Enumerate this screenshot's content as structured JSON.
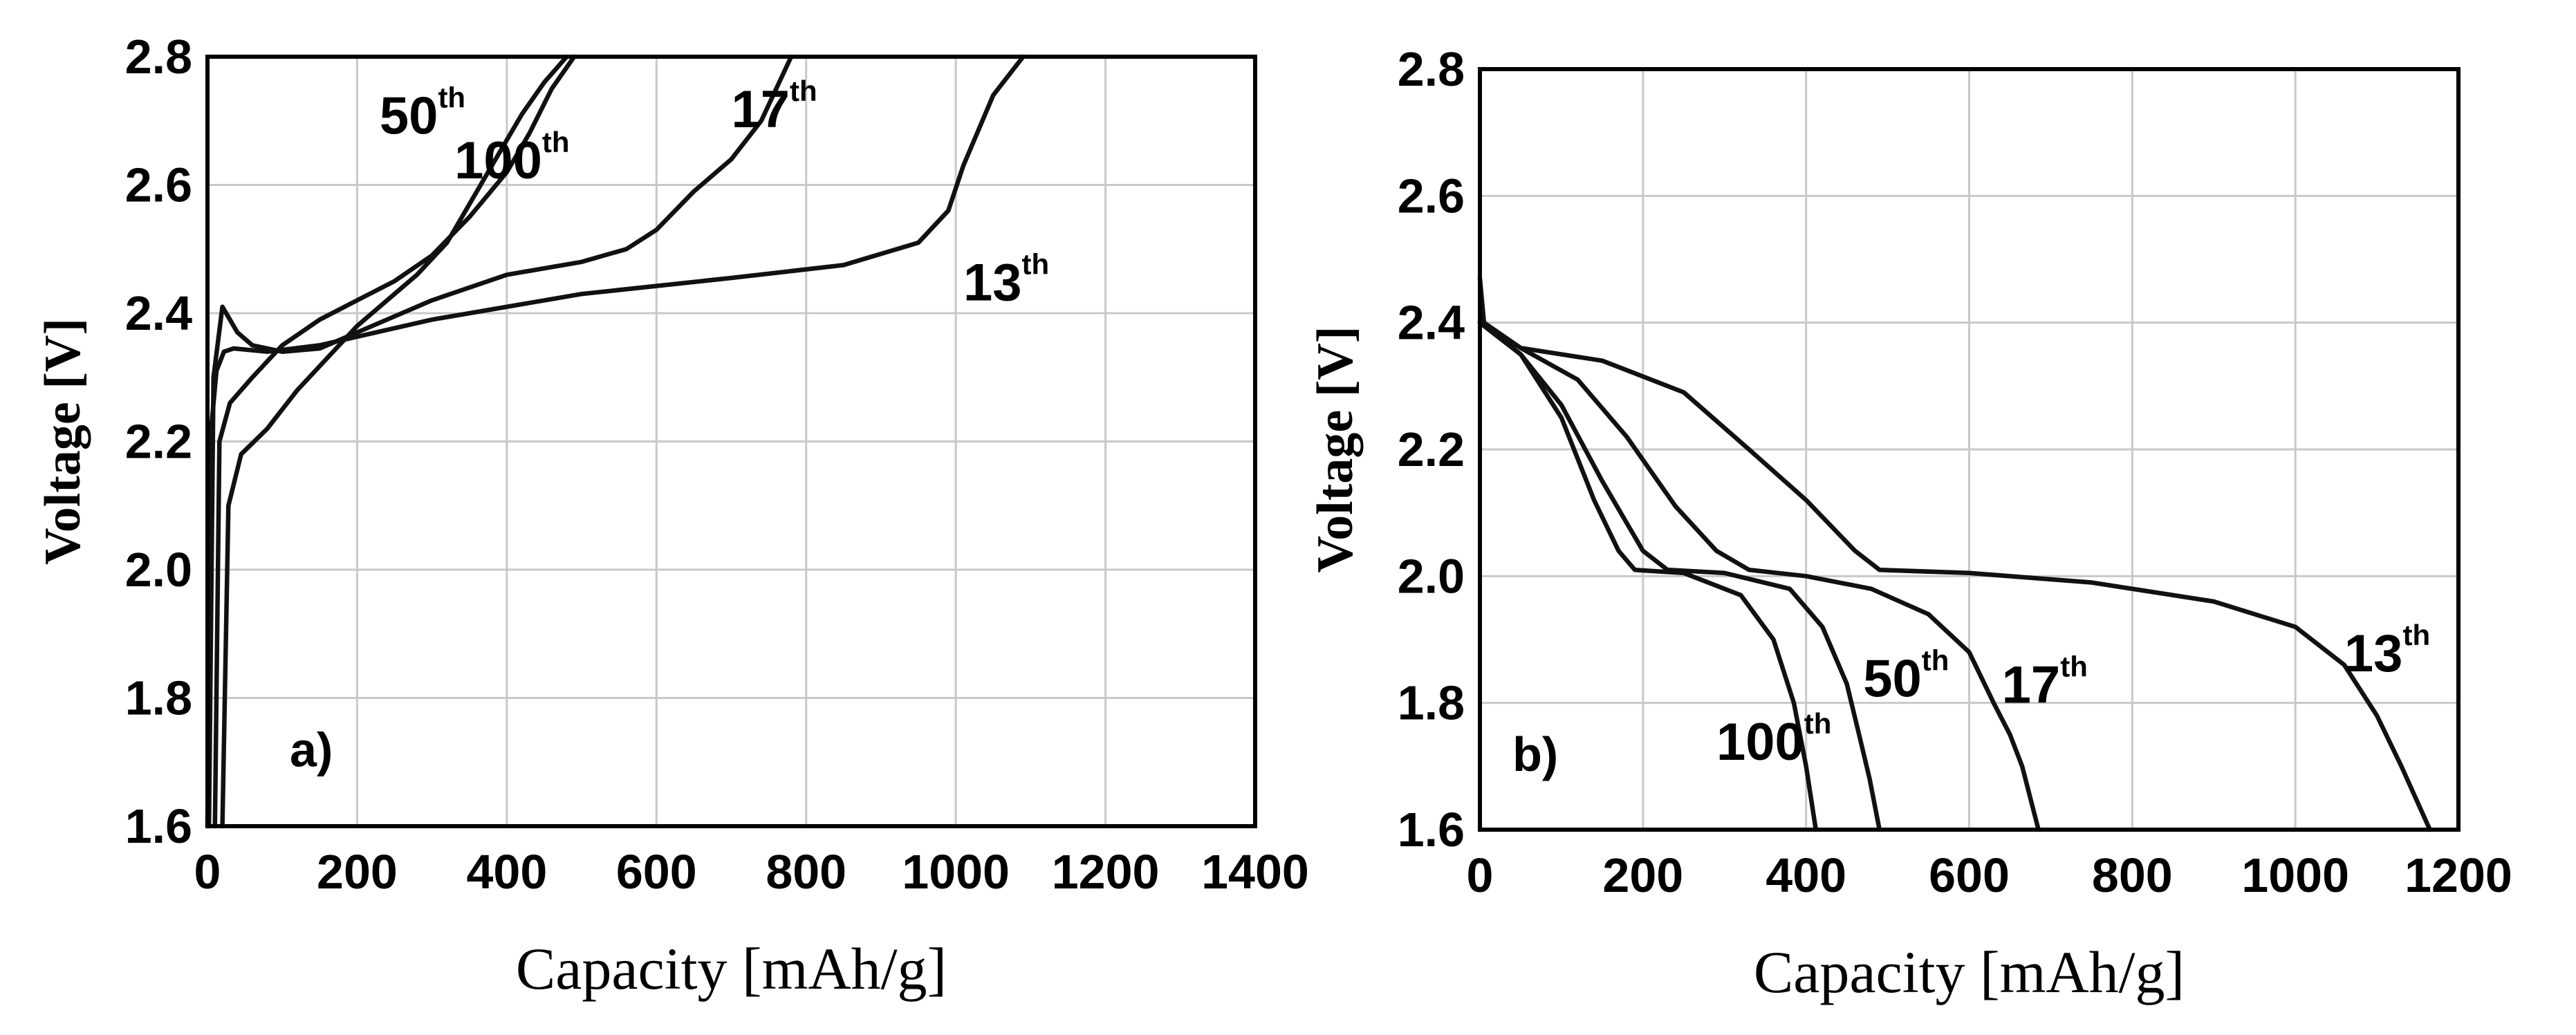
{
  "chart_data": [
    {
      "id": "a",
      "type": "line",
      "panel_label": "a)",
      "xlabel": "Capacity [mAh/g]",
      "ylabel": "Voltage [V]",
      "xlim": [
        0,
        1400
      ],
      "ylim": [
        1.6,
        2.8
      ],
      "xticks": [
        0,
        200,
        400,
        600,
        800,
        1000,
        1200,
        1400
      ],
      "yticks": [
        1.6,
        1.8,
        2.0,
        2.2,
        2.4,
        2.6,
        2.8
      ],
      "xtick_labels": [
        "0",
        "200",
        "400",
        "600",
        "800",
        "1000",
        "1200",
        "1400"
      ],
      "ytick_labels": [
        "1.6",
        "1.8",
        "2.0",
        "2.2",
        "2.4",
        "2.6",
        "2.8"
      ],
      "grid": true,
      "series": [
        {
          "name": "13th",
          "label_num": "13",
          "label_sup": "th",
          "x": [
            0,
            5,
            12,
            22,
            35,
            80,
            150,
            300,
            500,
            700,
            850,
            950,
            990,
            1010,
            1050,
            1090
          ],
          "y": [
            1.6,
            2.22,
            2.31,
            2.34,
            2.345,
            2.34,
            2.35,
            2.39,
            2.43,
            2.455,
            2.475,
            2.51,
            2.56,
            2.63,
            2.74,
            2.8
          ]
        },
        {
          "name": "17th",
          "label_num": "17",
          "label_sup": "th",
          "x": [
            2,
            8,
            20,
            40,
            60,
            100,
            150,
            200,
            300,
            400,
            500,
            560,
            600,
            650,
            700,
            740,
            780
          ],
          "y": [
            1.6,
            2.3,
            2.41,
            2.37,
            2.35,
            2.34,
            2.345,
            2.37,
            2.42,
            2.46,
            2.48,
            2.5,
            2.53,
            2.59,
            2.64,
            2.7,
            2.8
          ]
        },
        {
          "name": "50th",
          "label_num": "50",
          "label_sup": "th",
          "x": [
            20,
            28,
            45,
            80,
            120,
            200,
            280,
            320,
            360,
            390,
            420,
            450,
            480
          ],
          "y": [
            1.6,
            2.1,
            2.18,
            2.22,
            2.28,
            2.38,
            2.46,
            2.51,
            2.59,
            2.65,
            2.71,
            2.76,
            2.8
          ]
        },
        {
          "name": "100th",
          "label_num": "100",
          "label_sup": "th",
          "x": [
            10,
            16,
            30,
            60,
            100,
            150,
            200,
            250,
            300,
            350,
            400,
            430,
            460,
            490
          ],
          "y": [
            1.6,
            2.2,
            2.26,
            2.3,
            2.35,
            2.39,
            2.42,
            2.45,
            2.49,
            2.55,
            2.62,
            2.68,
            2.75,
            2.8
          ]
        }
      ]
    },
    {
      "id": "b",
      "type": "line",
      "panel_label": "b)",
      "xlabel": "Capacity [mAh/g]",
      "ylabel": "Voltage [V]",
      "xlim": [
        0,
        1200
      ],
      "ylim": [
        1.6,
        2.8
      ],
      "xticks": [
        0,
        200,
        400,
        600,
        800,
        1000,
        1200
      ],
      "yticks": [
        1.6,
        1.8,
        2.0,
        2.2,
        2.4,
        2.6,
        2.8
      ],
      "xtick_labels": [
        "0",
        "200",
        "400",
        "600",
        "800",
        "1000",
        "1200"
      ],
      "ytick_labels": [
        "1.6",
        "1.8",
        "2.0",
        "2.2",
        "2.4",
        "2.6",
        "2.8"
      ],
      "grid": true,
      "series": [
        {
          "name": "13th",
          "label_num": "13",
          "label_sup": "th",
          "x": [
            0,
            5,
            50,
            150,
            250,
            330,
            400,
            460,
            490,
            600,
            750,
            900,
            1000,
            1060,
            1100,
            1130,
            1165
          ],
          "y": [
            2.47,
            2.4,
            2.36,
            2.34,
            2.29,
            2.2,
            2.12,
            2.04,
            2.01,
            2.005,
            1.99,
            1.96,
            1.92,
            1.86,
            1.78,
            1.7,
            1.6
          ]
        },
        {
          "name": "17th",
          "label_num": "17",
          "label_sup": "th",
          "x": [
            0,
            50,
            120,
            180,
            240,
            290,
            330,
            400,
            480,
            550,
            600,
            630,
            650,
            665,
            685
          ],
          "y": [
            2.4,
            2.36,
            2.31,
            2.22,
            2.11,
            2.04,
            2.01,
            2.0,
            1.98,
            1.94,
            1.88,
            1.8,
            1.75,
            1.7,
            1.6
          ]
        },
        {
          "name": "50th",
          "label_num": "50",
          "label_sup": "th",
          "x": [
            0,
            50,
            100,
            150,
            200,
            230,
            300,
            380,
            420,
            450,
            465,
            478,
            490
          ],
          "y": [
            2.4,
            2.35,
            2.27,
            2.15,
            2.04,
            2.01,
            2.005,
            1.98,
            1.92,
            1.83,
            1.75,
            1.68,
            1.6
          ]
        },
        {
          "name": "100th",
          "label_num": "100",
          "label_sup": "th",
          "x": [
            0,
            50,
            100,
            140,
            170,
            190,
            250,
            320,
            360,
            385,
            400,
            412
          ],
          "y": [
            2.4,
            2.35,
            2.25,
            2.12,
            2.04,
            2.01,
            2.005,
            1.97,
            1.9,
            1.8,
            1.7,
            1.6
          ]
        }
      ]
    }
  ]
}
